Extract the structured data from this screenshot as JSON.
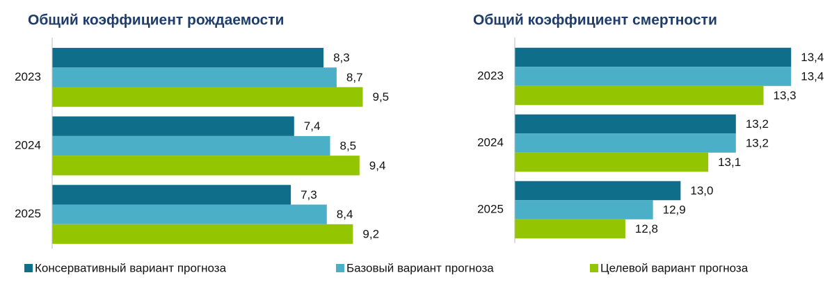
{
  "chart_data": [
    {
      "type": "bar",
      "orientation": "horizontal",
      "title": "Общий коэффициент рождаемости",
      "categories": [
        "2023",
        "2024",
        "2025"
      ],
      "xlim": [
        0,
        10
      ],
      "series": [
        {
          "name": "Консервативный вариант прогноза",
          "color": "#0f6e89",
          "values": [
            8.3,
            7.4,
            7.3
          ],
          "value_labels": [
            "8,3",
            "7,4",
            "7,3"
          ]
        },
        {
          "name": "Базовый вариант прогноза",
          "color": "#4bb0c7",
          "values": [
            8.7,
            8.5,
            8.4
          ],
          "value_labels": [
            "8,7",
            "8,5",
            "8,4"
          ]
        },
        {
          "name": "Целевой вариант прогноза",
          "color": "#93c500",
          "values": [
            9.5,
            9.4,
            9.2
          ],
          "value_labels": [
            "9,5",
            "9,4",
            "9,2"
          ]
        }
      ]
    },
    {
      "type": "bar",
      "orientation": "horizontal",
      "title": "Общий коэффициент смертности",
      "categories": [
        "2023",
        "2024",
        "2025"
      ],
      "xlim": [
        12.4,
        13.5
      ],
      "series": [
        {
          "color": "#0f6e89",
          "values": [
            13.4,
            13.2,
            13.0
          ],
          "value_labels": [
            "13,4",
            "13,2",
            "13,0"
          ]
        },
        {
          "color": "#4bb0c7",
          "values": [
            13.4,
            13.2,
            12.9
          ],
          "value_labels": [
            "13,4",
            "13,2",
            "12,9"
          ]
        },
        {
          "color": "#93c500",
          "values": [
            13.3,
            13.1,
            12.8
          ],
          "value_labels": [
            "13,3",
            "13,1",
            "12,8"
          ]
        }
      ]
    }
  ]
}
